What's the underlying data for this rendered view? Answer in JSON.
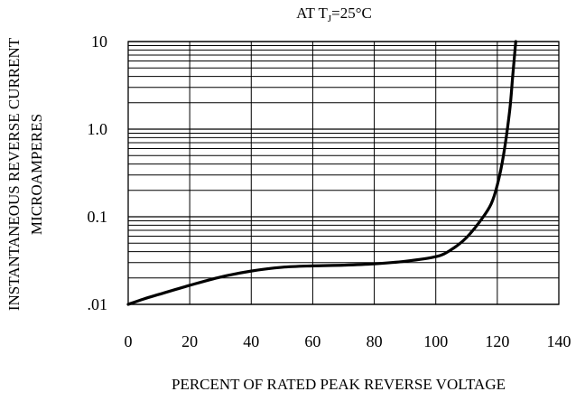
{
  "chart_data": {
    "type": "line",
    "title": "AT T",
    "title_sub": "J",
    "title_suffix": "=25°C",
    "xlabel": "PERCENT OF RATED PEAK REVERSE VOLTAGE",
    "ylabel_lines": [
      "INSTANTANEOUS REVERSE CURRENT",
      "MICROAMPERES"
    ],
    "x_ticks": [
      0,
      20,
      40,
      60,
      80,
      100,
      120,
      140
    ],
    "x_tick_labels": [
      "0",
      "20",
      "40",
      "60",
      "80",
      "100",
      "120",
      "140"
    ],
    "xlim": [
      0,
      140
    ],
    "y_scale": "log",
    "ylim": [
      0.01,
      10
    ],
    "y_ticks": [
      0.01,
      0.1,
      1,
      10
    ],
    "y_tick_labels": [
      ".01",
      "0.1",
      "1.0",
      "10"
    ],
    "grid": true,
    "series": [
      {
        "color": "#000000",
        "x": [
          0,
          5,
          10,
          20,
          30,
          40,
          50,
          60,
          70,
          80,
          90,
          100,
          105,
          110,
          115,
          118,
          120,
          122,
          124,
          125,
          126
        ],
        "y": [
          0.01,
          0.0115,
          0.013,
          0.0165,
          0.0205,
          0.024,
          0.0265,
          0.0275,
          0.028,
          0.029,
          0.031,
          0.035,
          0.042,
          0.058,
          0.095,
          0.14,
          0.23,
          0.5,
          1.6,
          4.0,
          10
        ]
      }
    ]
  }
}
